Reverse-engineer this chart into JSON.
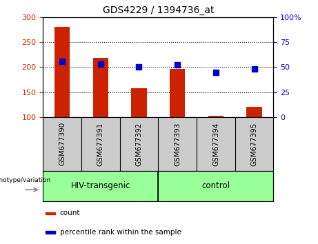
{
  "title": "GDS4229 / 1394736_at",
  "samples": [
    "GSM677390",
    "GSM677391",
    "GSM677392",
    "GSM677393",
    "GSM677394",
    "GSM677395"
  ],
  "bar_values": [
    281,
    218,
    158,
    196,
    103,
    120
  ],
  "bar_baseline": 100,
  "percentile_values": [
    56,
    53,
    50,
    52,
    45,
    48
  ],
  "left_ylim": [
    100,
    300
  ],
  "left_yticks": [
    100,
    150,
    200,
    250,
    300
  ],
  "right_ylim": [
    0,
    100
  ],
  "right_yticks": [
    0,
    25,
    50,
    75,
    100
  ],
  "right_yticklabels": [
    "0",
    "25",
    "50",
    "75",
    "100%"
  ],
  "bar_color": "#cc2200",
  "dot_color": "#0000cc",
  "groups": [
    {
      "label": "HIV-transgenic",
      "start": 0,
      "end": 3
    },
    {
      "label": "control",
      "start": 3,
      "end": 6
    }
  ],
  "group_fill": "#99ff99",
  "tick_area_color": "#cccccc",
  "left_tick_color": "#cc2200",
  "right_tick_color": "#0000cc",
  "legend_items": [
    {
      "color": "#cc2200",
      "label": "count"
    },
    {
      "color": "#0000cc",
      "label": "percentile rank within the sample"
    }
  ],
  "background_color": "#ffffff",
  "xlabel_group": "genotype/variation"
}
